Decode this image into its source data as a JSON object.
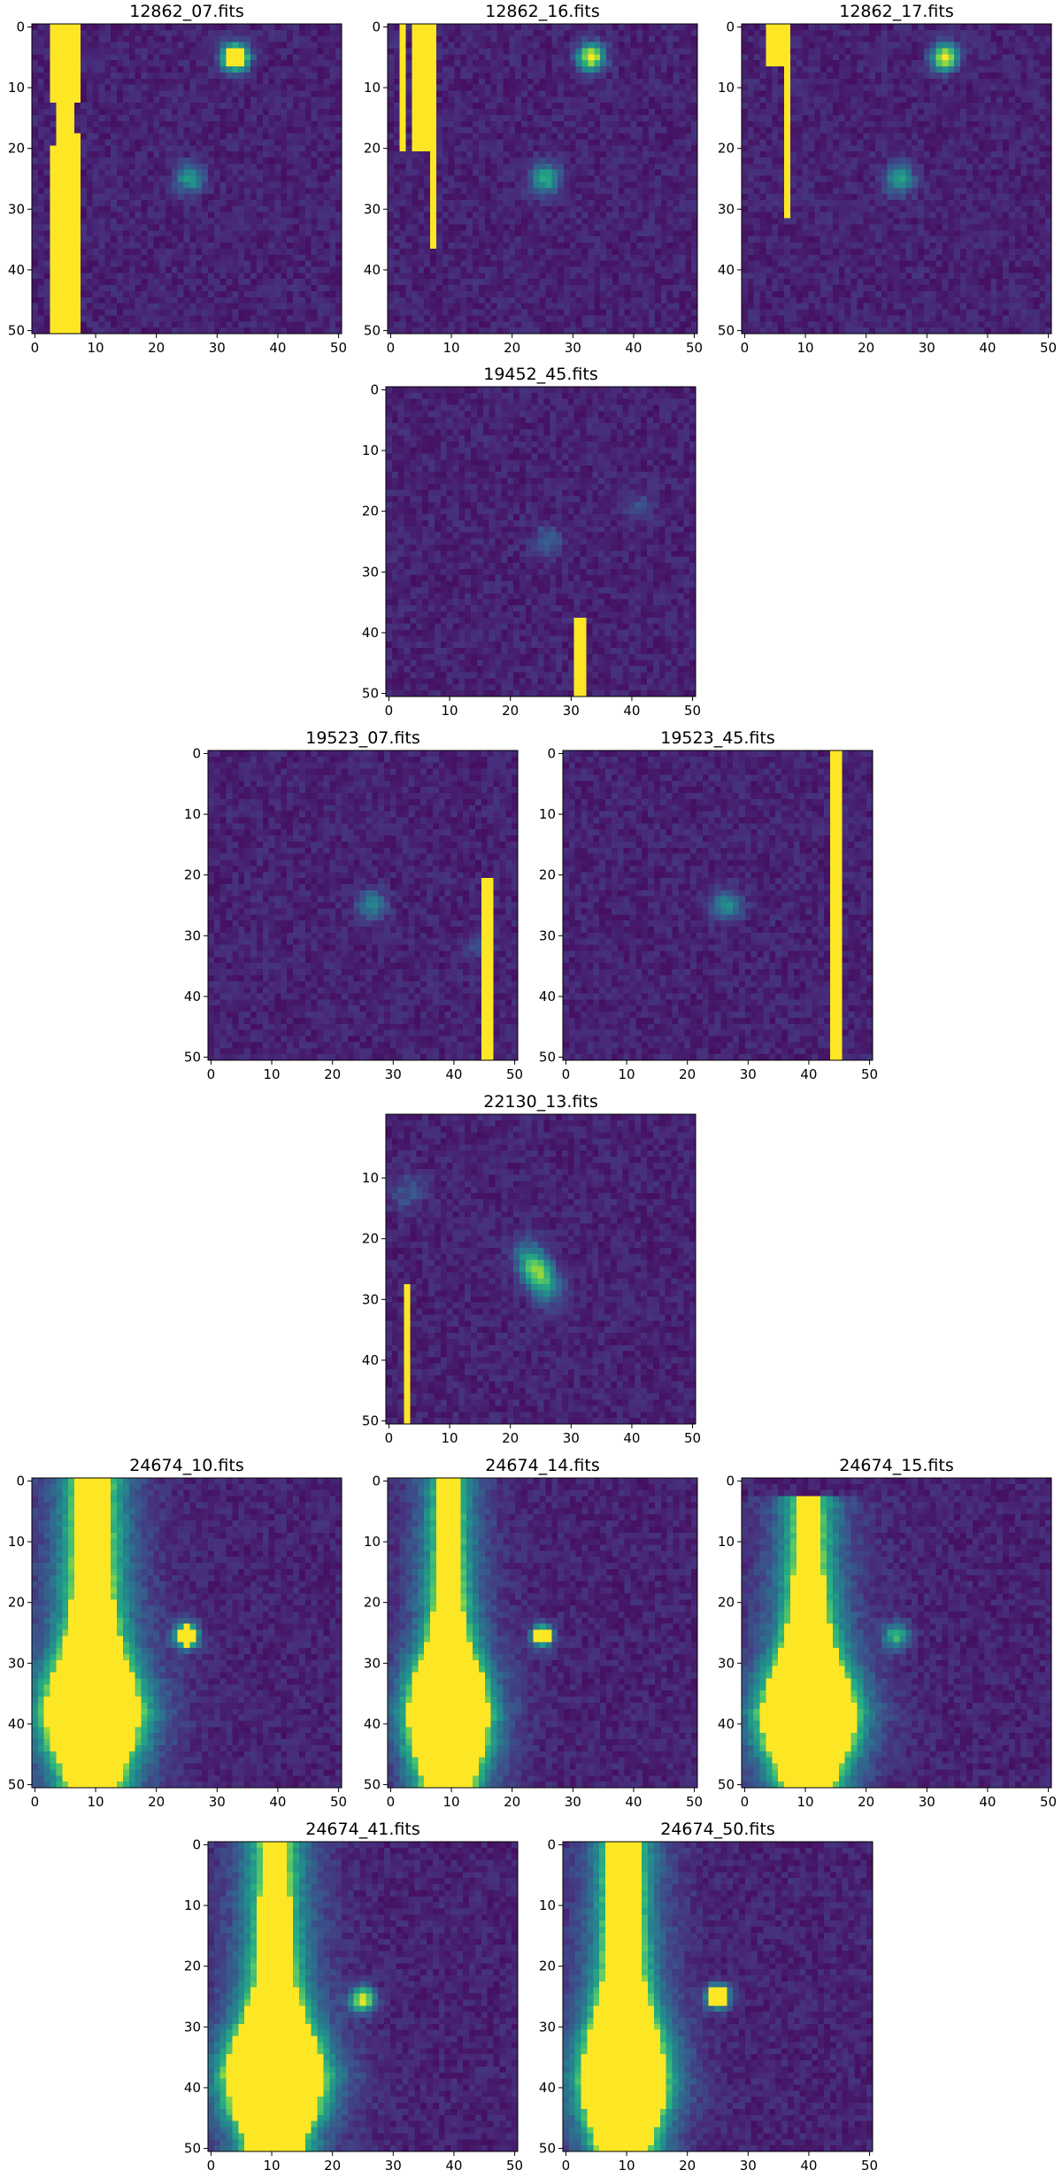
{
  "colormap": {
    "name": "viridis",
    "background": "#440154",
    "bright": "#fde725",
    "stops": [
      "#440154",
      "#472d7b",
      "#3b528b",
      "#2c728e",
      "#21918c",
      "#28ae80",
      "#5ec962",
      "#addc30",
      "#fde725"
    ]
  },
  "chart_data": [
    {
      "type": "heatmap",
      "title": "12862_07.fits",
      "xlim": [
        0,
        50
      ],
      "ylim": [
        0,
        50
      ],
      "x_ticks": [
        "0",
        "10",
        "20",
        "30",
        "40",
        "50"
      ],
      "y_ticks": [
        "0",
        "10",
        "20",
        "30",
        "40",
        "50"
      ],
      "grid": false,
      "sources": [
        {
          "x": 25.5,
          "y": 25,
          "amplitude": 0.45,
          "sigma": 1.6,
          "elong": 1,
          "angle": 0,
          "saturated": false
        },
        {
          "x": 33,
          "y": 5,
          "amplitude": 1.2,
          "sigma": 1.5,
          "elong": 1,
          "angle": 0,
          "saturated": true
        }
      ],
      "saturated_columns": [
        {
          "x0": 3,
          "x1": 8,
          "y0": 0,
          "y1": 13
        },
        {
          "x0": 3,
          "x1": 3.8,
          "y0": 20,
          "y1": 51
        },
        {
          "x0": 4.5,
          "x1": 7,
          "y0": 13,
          "y1": 51
        },
        {
          "x0": 7.4,
          "x1": 8.2,
          "y0": 18,
          "y1": 51
        }
      ],
      "bright_profiles": []
    },
    {
      "type": "heatmap",
      "title": "12862_16.fits",
      "xlim": [
        0,
        50
      ],
      "ylim": [
        0,
        50
      ],
      "x_ticks": [
        "0",
        "10",
        "20",
        "30",
        "40",
        "50"
      ],
      "y_ticks": [
        "0",
        "10",
        "20",
        "30",
        "40",
        "50"
      ],
      "grid": false,
      "sources": [
        {
          "x": 25.5,
          "y": 25,
          "amplitude": 0.5,
          "sigma": 1.7,
          "elong": 1,
          "angle": 0,
          "saturated": false
        },
        {
          "x": 33,
          "y": 5,
          "amplitude": 0.9,
          "sigma": 1.5,
          "elong": 1,
          "angle": 0,
          "saturated": false
        }
      ],
      "saturated_columns": [
        {
          "x0": 2,
          "x1": 3,
          "y0": 0,
          "y1": 20.5
        },
        {
          "x0": 3.6,
          "x1": 5.6,
          "y0": 0,
          "y1": 20.5
        },
        {
          "x0": 6.4,
          "x1": 7.5,
          "y0": 0,
          "y1": 20.5
        },
        {
          "x0": 7.5,
          "x1": 8.4,
          "y0": 0,
          "y1": 37
        }
      ],
      "bright_profiles": []
    },
    {
      "type": "heatmap",
      "title": "12862_17.fits",
      "xlim": [
        0,
        50
      ],
      "ylim": [
        0,
        50
      ],
      "x_ticks": [
        "0",
        "10",
        "20",
        "30",
        "40",
        "50"
      ],
      "y_ticks": [
        "0",
        "10",
        "20",
        "30",
        "40",
        "50"
      ],
      "grid": false,
      "sources": [
        {
          "x": 25.5,
          "y": 25,
          "amplitude": 0.45,
          "sigma": 1.7,
          "elong": 1,
          "angle": 0,
          "saturated": false
        },
        {
          "x": 33,
          "y": 5,
          "amplitude": 0.9,
          "sigma": 1.5,
          "elong": 1,
          "angle": 0,
          "saturated": false
        }
      ],
      "saturated_columns": [
        {
          "x0": 4,
          "x1": 7,
          "y0": 0,
          "y1": 6.5
        },
        {
          "x0": 7.5,
          "x1": 8.3,
          "y0": 0,
          "y1": 32
        }
      ],
      "bright_profiles": []
    },
    {
      "type": "heatmap",
      "title": "19452_45.fits",
      "xlim": [
        0,
        50
      ],
      "ylim": [
        0,
        50
      ],
      "x_ticks": [
        "0",
        "10",
        "20",
        "30",
        "40",
        "50"
      ],
      "y_ticks": [
        "0",
        "10",
        "20",
        "30",
        "40",
        "50"
      ],
      "grid": false,
      "sources": [
        {
          "x": 26,
          "y": 25,
          "amplitude": 0.25,
          "sigma": 1.6,
          "elong": 1,
          "angle": 0,
          "saturated": false
        },
        {
          "x": 41,
          "y": 19.5,
          "amplitude": 0.18,
          "sigma": 1.5,
          "elong": 1,
          "angle": 0,
          "saturated": false
        }
      ],
      "saturated_columns": [
        {
          "x0": 31.5,
          "x1": 32.5,
          "y0": 38.5,
          "y1": 51
        }
      ],
      "bright_profiles": []
    },
    {
      "type": "heatmap",
      "title": "19523_07.fits",
      "xlim": [
        0,
        50
      ],
      "ylim": [
        0,
        50
      ],
      "x_ticks": [
        "0",
        "10",
        "20",
        "30",
        "40",
        "50"
      ],
      "y_ticks": [
        "0",
        "10",
        "20",
        "30",
        "40",
        "50"
      ],
      "grid": false,
      "sources": [
        {
          "x": 26.5,
          "y": 25,
          "amplitude": 0.35,
          "sigma": 1.7,
          "elong": 1,
          "angle": 0,
          "saturated": false
        },
        {
          "x": 44,
          "y": 32,
          "amplitude": 0.12,
          "sigma": 1.5,
          "elong": 1,
          "angle": 0,
          "saturated": false
        }
      ],
      "saturated_columns": [
        {
          "x0": 45.5,
          "x1": 46.5,
          "y0": 21.5,
          "y1": 51
        }
      ],
      "bright_profiles": []
    },
    {
      "type": "heatmap",
      "title": "19523_45.fits",
      "xlim": [
        0,
        50
      ],
      "ylim": [
        0,
        50
      ],
      "x_ticks": [
        "0",
        "10",
        "20",
        "30",
        "40",
        "50"
      ],
      "y_ticks": [
        "0",
        "10",
        "20",
        "30",
        "40",
        "50"
      ],
      "grid": false,
      "sources": [
        {
          "x": 26.5,
          "y": 25,
          "amplitude": 0.38,
          "sigma": 1.7,
          "elong": 1,
          "angle": 0,
          "saturated": false
        }
      ],
      "saturated_columns": [
        {
          "x0": 44.5,
          "x1": 45.7,
          "y0": 0,
          "y1": 51
        }
      ],
      "bright_profiles": []
    },
    {
      "type": "heatmap",
      "title": "22130_13.fits",
      "xlim": [
        0,
        50
      ],
      "ylim": [
        0,
        50
      ],
      "x_ticks": [
        "0",
        "10",
        "20",
        "30",
        "40",
        "50"
      ],
      "y_ticks": [
        "10",
        "20",
        "30",
        "40",
        "50"
      ],
      "grid": false,
      "sources": [
        {
          "x": 24.5,
          "y": 25.5,
          "amplitude": 0.75,
          "sigma": 1.8,
          "elong": 1.8,
          "angle": 60,
          "saturated": false
        },
        {
          "x": 3,
          "y": 12.5,
          "amplitude": 0.18,
          "sigma": 2.0,
          "elong": 1,
          "angle": 0,
          "saturated": false
        }
      ],
      "saturated_columns": [
        {
          "x0": 2.7,
          "x1": 3.6,
          "y0": 28.5,
          "y1": 51
        }
      ],
      "bright_profiles": []
    },
    {
      "type": "heatmap",
      "title": "24674_10.fits",
      "xlim": [
        0,
        50
      ],
      "ylim": [
        0,
        50
      ],
      "x_ticks": [
        "0",
        "10",
        "20",
        "30",
        "40",
        "50"
      ],
      "y_ticks": [
        "0",
        "10",
        "20",
        "30",
        "40",
        "50"
      ],
      "grid": false,
      "sources": [
        {
          "x": 25,
          "y": 25.5,
          "amplitude": 0.95,
          "sigma": 1.4,
          "elong": 1,
          "angle": 0,
          "saturated": true
        }
      ],
      "saturated_columns": [],
      "bright_profiles": [
        {
          "center": 10,
          "y0": 0,
          "y1": 51,
          "halo": 3.2,
          "profile": [
            [
              0,
              2.8
            ],
            [
              10,
              3
            ],
            [
              22,
              3.6
            ],
            [
              28,
              5
            ],
            [
              33,
              7
            ],
            [
              38,
              8.2
            ],
            [
              43,
              7
            ],
            [
              48,
              5
            ],
            [
              51,
              4.2
            ]
          ]
        }
      ]
    },
    {
      "type": "heatmap",
      "title": "24674_14.fits",
      "xlim": [
        0,
        50
      ],
      "ylim": [
        0,
        50
      ],
      "x_ticks": [
        "0",
        "10",
        "20",
        "30",
        "40",
        "50"
      ],
      "y_ticks": [
        "0",
        "10",
        "20",
        "30",
        "40",
        "50"
      ],
      "grid": false,
      "sources": [
        {
          "x": 25,
          "y": 25.5,
          "amplitude": 1.0,
          "sigma": 1.2,
          "elong": 1,
          "angle": 0,
          "saturated": true
        }
      ],
      "saturated_columns": [],
      "bright_profiles": [
        {
          "center": 10,
          "y0": 0,
          "y1": 51,
          "halo": 2.6,
          "profile": [
            [
              0,
              1.6
            ],
            [
              12,
              1.9
            ],
            [
              22,
              2.5
            ],
            [
              27,
              3.6
            ],
            [
              32,
              5.5
            ],
            [
              38,
              6.8
            ],
            [
              44,
              6
            ],
            [
              48,
              4.6
            ],
            [
              51,
              4
            ]
          ]
        }
      ]
    },
    {
      "type": "heatmap",
      "title": "24674_15.fits",
      "xlim": [
        0,
        50
      ],
      "ylim": [
        0,
        50
      ],
      "x_ticks": [
        "0",
        "10",
        "20",
        "30",
        "40",
        "50"
      ],
      "y_ticks": [
        "0",
        "10",
        "20",
        "30",
        "40",
        "50"
      ],
      "grid": false,
      "sources": [
        {
          "x": 25,
          "y": 25.5,
          "amplitude": 0.55,
          "sigma": 1.5,
          "elong": 1,
          "angle": 0,
          "saturated": false
        }
      ],
      "saturated_columns": [],
      "bright_profiles": [
        {
          "center": 11,
          "y0": 2.5,
          "y1": 51,
          "halo": 3,
          "profile": [
            [
              2.5,
              1.8
            ],
            [
              12,
              2.2
            ],
            [
              22,
              3
            ],
            [
              28,
              4.5
            ],
            [
              33,
              6.5
            ],
            [
              38,
              8
            ],
            [
              43,
              7.2
            ],
            [
              48,
              5
            ],
            [
              51,
              4
            ]
          ]
        }
      ]
    },
    {
      "type": "heatmap",
      "title": "24674_41.fits",
      "xlim": [
        0,
        50
      ],
      "ylim": [
        0,
        50
      ],
      "x_ticks": [
        "0",
        "10",
        "20",
        "30",
        "40",
        "50"
      ],
      "y_ticks": [
        "0",
        "10",
        "20",
        "30",
        "40",
        "50"
      ],
      "grid": false,
      "sources": [
        {
          "x": 25,
          "y": 25.5,
          "amplitude": 0.85,
          "sigma": 1.4,
          "elong": 1,
          "angle": 0,
          "saturated": false
        }
      ],
      "saturated_columns": [],
      "bright_profiles": [
        {
          "center": 11,
          "y0": 0,
          "y1": 51,
          "halo": 3,
          "profile": [
            [
              0,
              2.2
            ],
            [
              12,
              2.6
            ],
            [
              22,
              3.2
            ],
            [
              28,
              4.8
            ],
            [
              33,
              7
            ],
            [
              38,
              8.4
            ],
            [
              44,
              7
            ],
            [
              48,
              5
            ],
            [
              51,
              4.5
            ]
          ]
        }
      ]
    },
    {
      "type": "heatmap",
      "title": "24674_50.fits",
      "xlim": [
        0,
        50
      ],
      "ylim": [
        0,
        50
      ],
      "x_ticks": [
        "0",
        "10",
        "20",
        "30",
        "40",
        "50"
      ],
      "y_ticks": [
        "0",
        "10",
        "20",
        "30",
        "40",
        "50"
      ],
      "grid": false,
      "sources": [
        {
          "x": 25,
          "y": 25,
          "amplitude": 1.0,
          "sigma": 1.3,
          "elong": 1,
          "angle": 0,
          "saturated": true
        }
      ],
      "saturated_columns": [],
      "bright_profiles": [
        {
          "center": 10,
          "y0": 0,
          "y1": 51,
          "halo": 2.8,
          "profile": [
            [
              0,
              2.6
            ],
            [
              12,
              2.8
            ],
            [
              22,
              3.4
            ],
            [
              28,
              4.8
            ],
            [
              33,
              6.2
            ],
            [
              38,
              7.2
            ],
            [
              43,
              6.5
            ],
            [
              48,
              5
            ],
            [
              51,
              4.2
            ]
          ]
        }
      ]
    }
  ]
}
